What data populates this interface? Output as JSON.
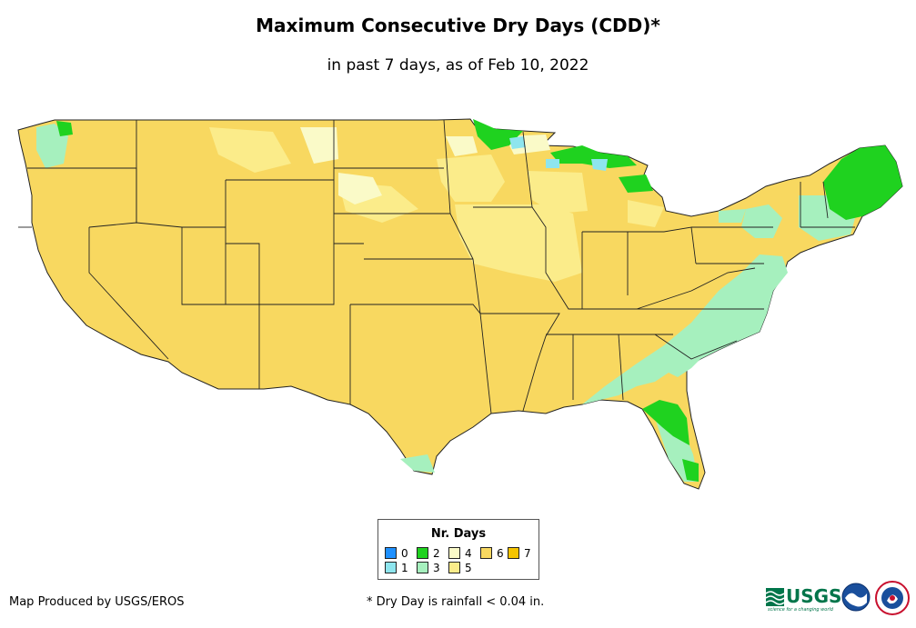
{
  "title": "Maximum Consecutive Dry Days (CDD)*",
  "subtitle": "in past 7 days, as of Feb 10, 2022",
  "legend": {
    "title": "Nr. Days",
    "items": [
      {
        "label": "0",
        "color": "#1e90ff"
      },
      {
        "label": "1",
        "color": "#8ee5ee"
      },
      {
        "label": "2",
        "color": "#1fd21f"
      },
      {
        "label": "3",
        "color": "#a6f0be"
      },
      {
        "label": "4",
        "color": "#fafac8"
      },
      {
        "label": "5",
        "color": "#fbec8a"
      },
      {
        "label": "6",
        "color": "#f8d860"
      },
      {
        "label": "7",
        "color": "#f5c400"
      }
    ]
  },
  "credit": "Map Produced by USGS/EROS",
  "footnote": "* Dry Day is rainfall < 0.04 in.",
  "logos": {
    "usgs": "USGS",
    "usgs_tagline": "science for a changing world"
  },
  "colors": {
    "day6": "#f8d860",
    "day5": "#fbec8a",
    "day4": "#fafac8",
    "day3": "#a6f0be",
    "day2": "#1fd21f",
    "day1": "#8ee5ee",
    "day0": "#1e90ff",
    "day7": "#f5c400"
  }
}
